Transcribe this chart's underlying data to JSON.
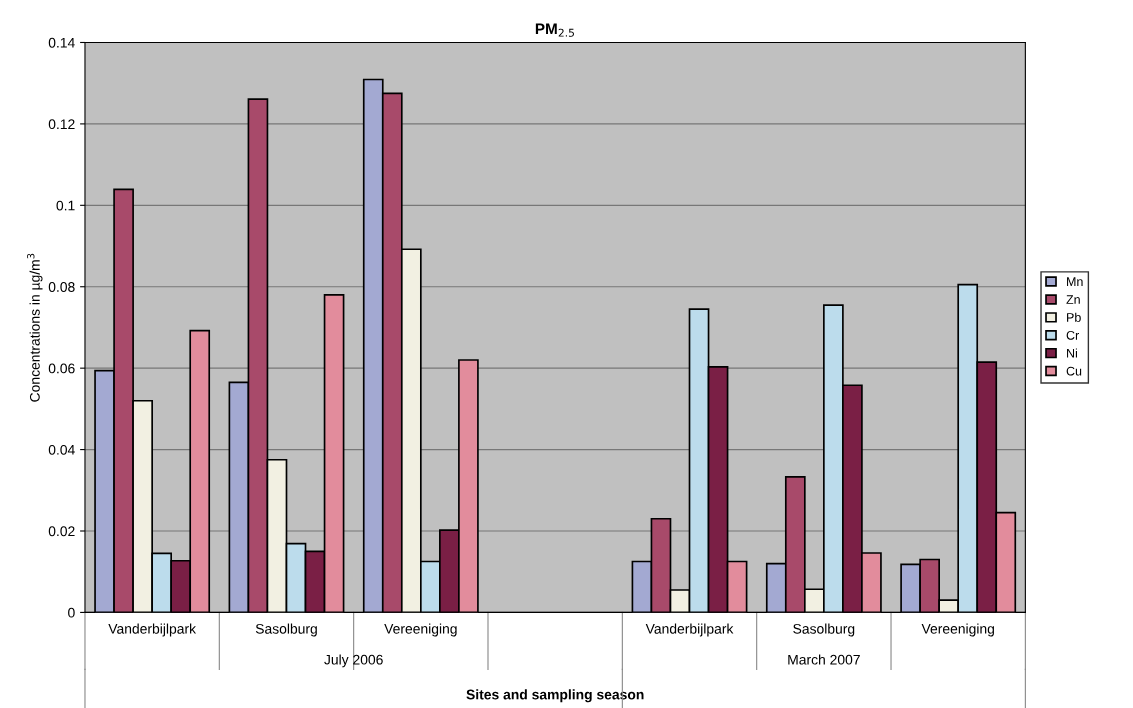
{
  "chart_data": {
    "type": "bar",
    "title": "PM$_{2.5}$",
    "xlabel": "Sites and sampling season",
    "ylabel": "Concentrations in µg/m$^{3}$",
    "categories": [
      "Vanderbijlpark",
      "Sasolburg",
      "Vereeniging",
      null,
      "Vanderbijlpark",
      "Sasolburg",
      "Vereeniging"
    ],
    "annotations": [
      "July 2006",
      "March 2007"
    ],
    "series": [
      {
        "name": "Mn",
        "color": "#a3a9d2",
        "values": [
          0.0594,
          0.0565,
          0.1309,
          null,
          0.0125,
          0.012,
          0.0118
        ]
      },
      {
        "name": "Zn",
        "color": "#a84a6a",
        "values": [
          0.1039,
          0.1261,
          0.1275,
          null,
          0.023,
          0.0333,
          0.013
        ]
      },
      {
        "name": "Pb",
        "color": "#f2f0e2",
        "values": [
          0.052,
          0.0375,
          0.0892,
          null,
          0.0055,
          0.0057,
          0.003
        ]
      },
      {
        "name": "Cr",
        "color": "#bcdcec",
        "values": [
          0.0145,
          0.0169,
          0.0125,
          null,
          0.0745,
          0.0755,
          0.0805
        ]
      },
      {
        "name": "Ni",
        "color": "#7a1f45",
        "values": [
          0.0127,
          0.015,
          0.0202,
          null,
          0.0603,
          0.0558,
          0.0615
        ]
      },
      {
        "name": "Cu",
        "color": "#e28c9c",
        "values": [
          0.0692,
          0.078,
          0.062,
          null,
          0.0125,
          0.0146,
          0.0245
        ]
      }
    ],
    "ylim": [
      0,
      0.14
    ],
    "yticks": [
      0,
      0.02,
      0.04,
      0.06,
      0.08,
      0.1,
      0.12,
      0.14
    ],
    "grid": "y",
    "legend": "right"
  }
}
